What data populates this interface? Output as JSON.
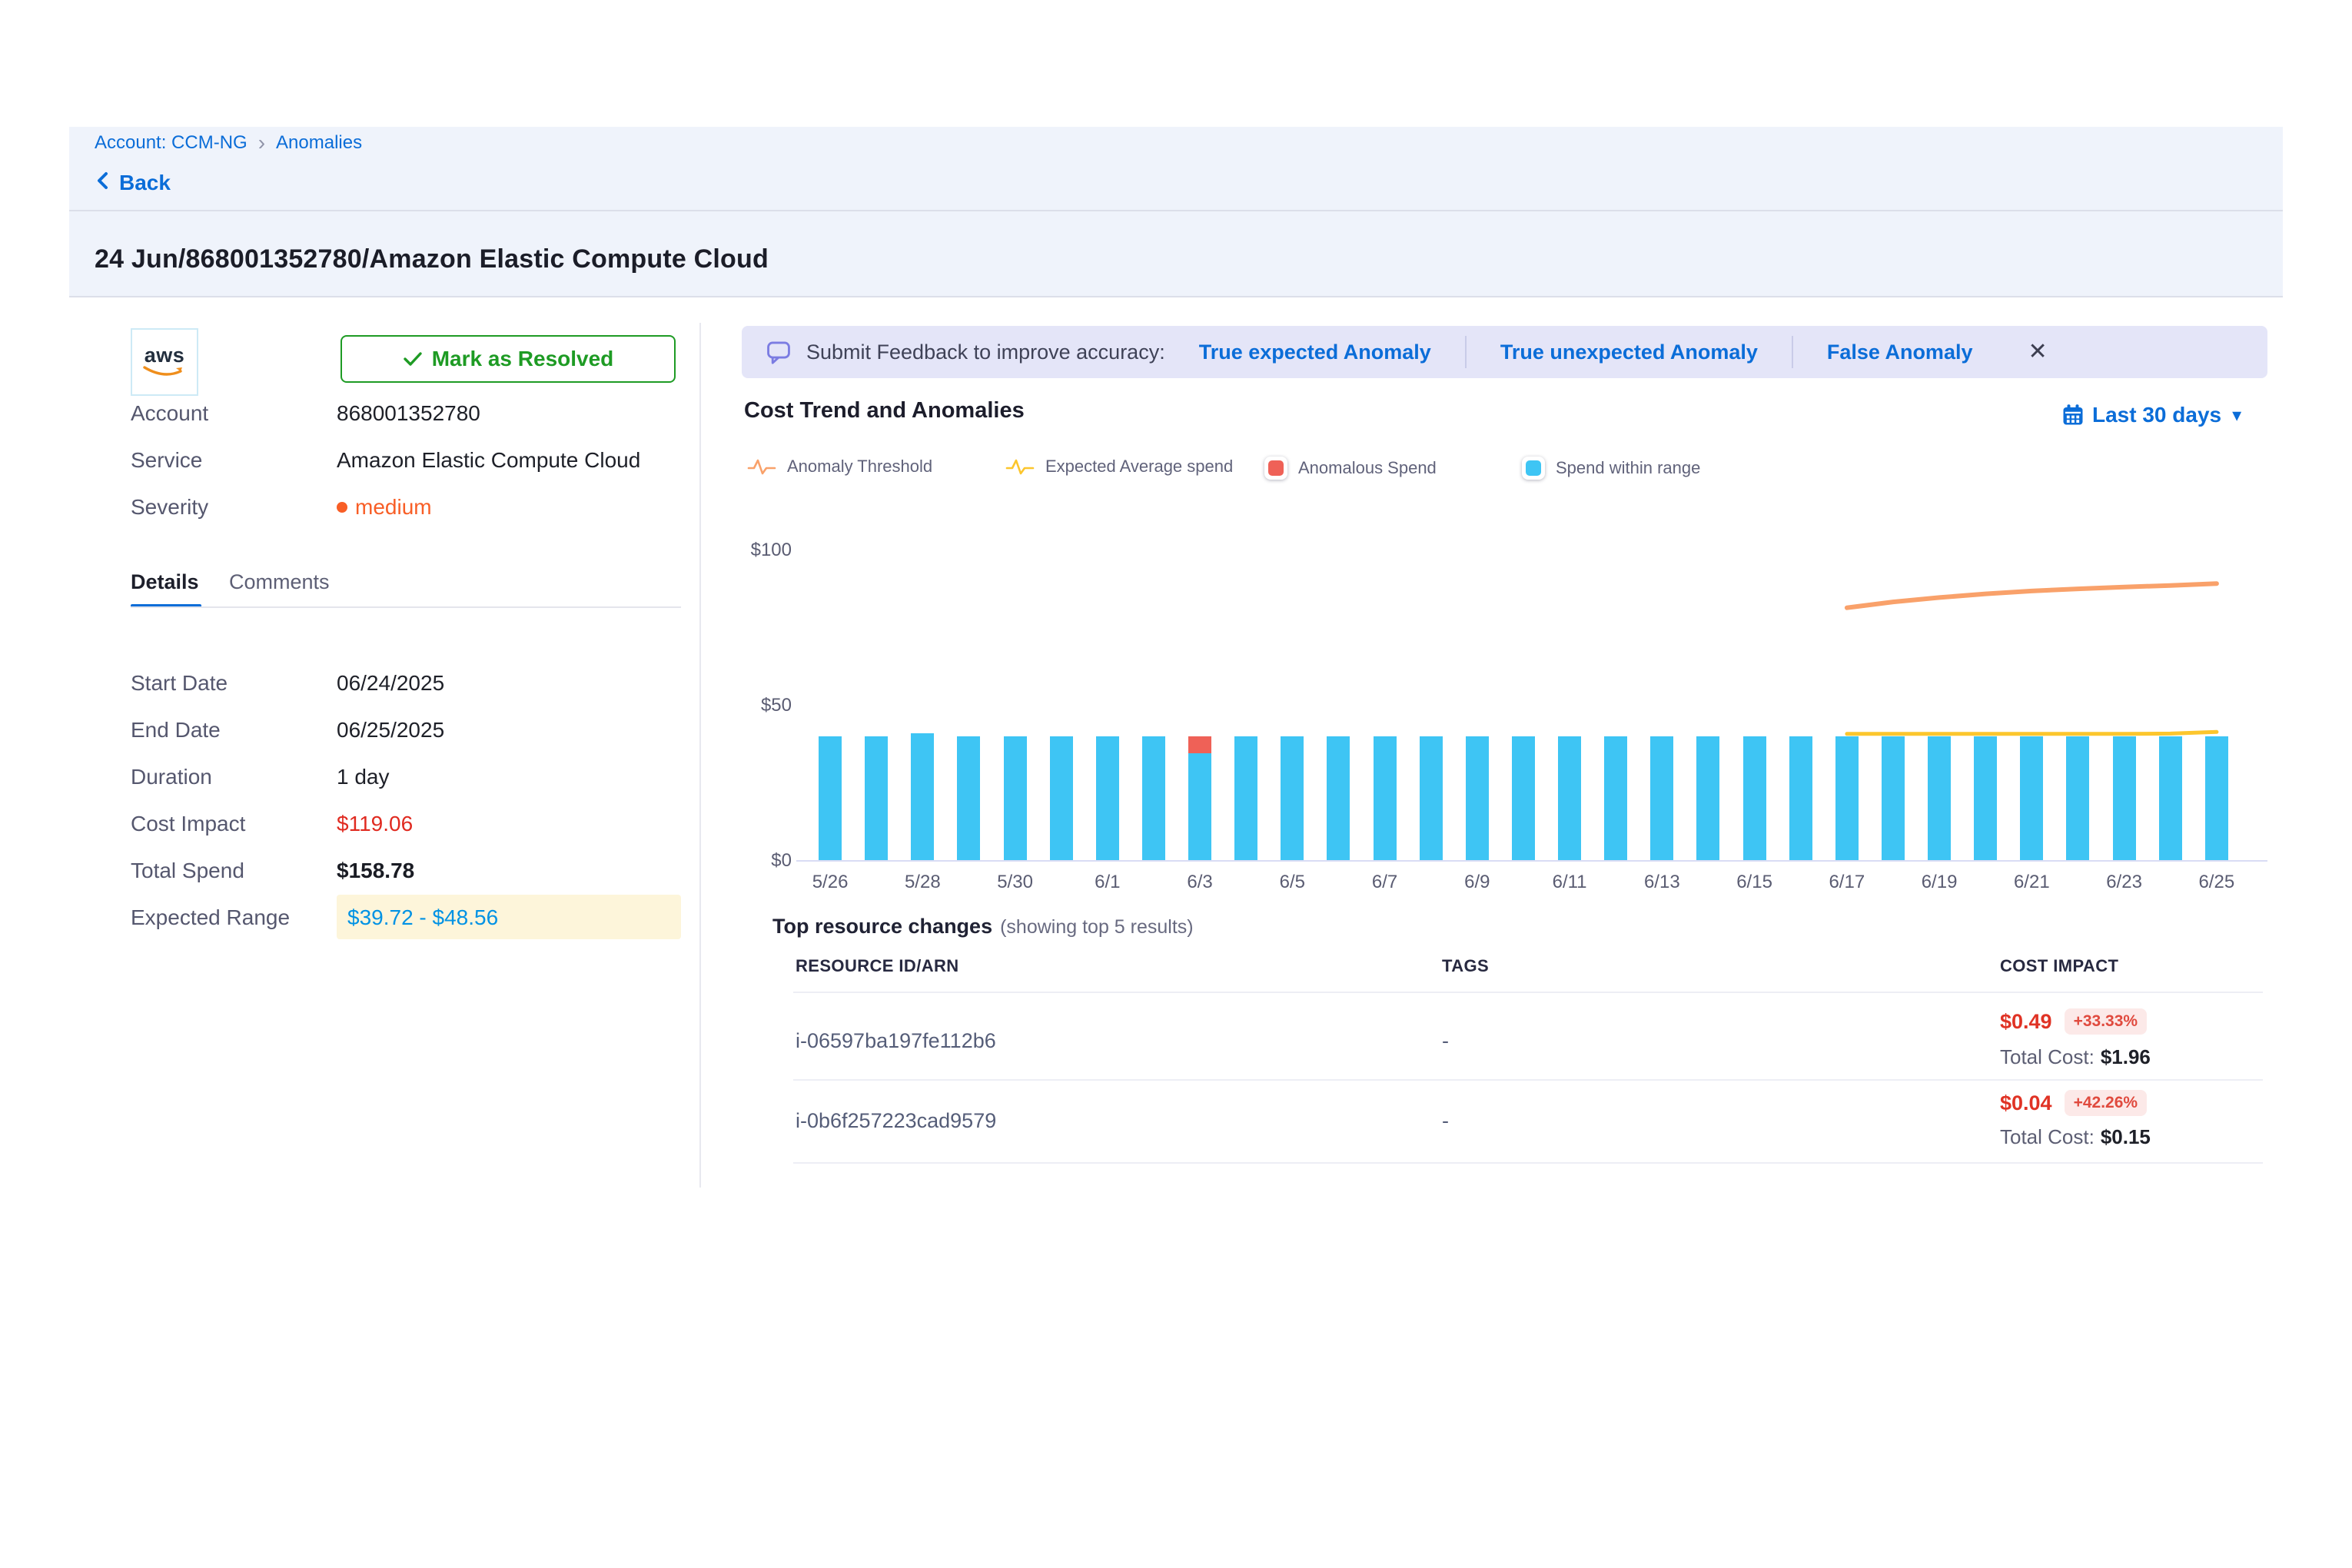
{
  "breadcrumb": {
    "account_link": "Account: CCM-NG",
    "separator": "›",
    "current": "Anomalies"
  },
  "header": {
    "back_label": "Back",
    "title": "24 Jun/868001352780/Amazon Elastic Compute Cloud"
  },
  "panel": {
    "logo_text": "aws",
    "resolve_button_label": "Mark as Resolved",
    "account_label": "Account",
    "account_value": "868001352780",
    "service_label": "Service",
    "service_value": "Amazon Elastic Compute Cloud",
    "severity_label": "Severity",
    "severity_value": "medium",
    "tabs": {
      "details": "Details",
      "comments": "Comments"
    },
    "start_date_label": "Start Date",
    "start_date": "06/24/2025",
    "end_date_label": "End Date",
    "end_date": "06/25/2025",
    "duration_label": "Duration",
    "duration": "1 day",
    "cost_impact_label": "Cost Impact",
    "cost_impact": "$119.06",
    "total_spend_label": "Total Spend",
    "total_spend": "$158.78",
    "expected_range_label": "Expected Range",
    "expected_range": "$39.72 - $48.56"
  },
  "feedback": {
    "prompt": "Submit Feedback to improve accuracy:",
    "options": [
      {
        "label": "True expected Anomaly"
      },
      {
        "label": "True unexpected Anomaly"
      },
      {
        "label": "False Anomaly"
      }
    ],
    "close_glyph": "✕"
  },
  "chart_header": {
    "title": "Cost Trend and Anomalies",
    "range_label": "Last 30 days",
    "caret": "▾"
  },
  "legend": [
    {
      "label": "Anomaly Threshold",
      "icon": "pulse",
      "color": "#f9a16a"
    },
    {
      "label": "Expected Average spend",
      "icon": "pulse",
      "color": "#fcc62d"
    },
    {
      "label": "Anomalous Spend",
      "icon": "square",
      "color": "#ef6157"
    },
    {
      "label": "Spend within range",
      "icon": "square",
      "color": "#3ec5f4"
    }
  ],
  "chart_data": {
    "type": "bar",
    "title": "Cost Trend and Anomalies",
    "xlabel": "",
    "ylabel": "",
    "ylim": [
      0,
      106
    ],
    "y_ticks": [
      "$0",
      "$50",
      "$100"
    ],
    "y_tick_values": [
      0,
      50,
      100
    ],
    "x_tick_every": 2,
    "grid": false,
    "legend_position": "top",
    "categories": [
      "5/26",
      "5/27",
      "5/28",
      "5/29",
      "5/30",
      "5/31",
      "6/1",
      "6/2",
      "6/3",
      "6/4",
      "6/5",
      "6/6",
      "6/7",
      "6/8",
      "6/9",
      "6/10",
      "6/11",
      "6/12",
      "6/13",
      "6/14",
      "6/15",
      "6/16",
      "6/17",
      "6/18",
      "6/19",
      "6/20",
      "6/21",
      "6/22",
      "6/23",
      "6/24",
      "6/25"
    ],
    "series": [
      {
        "name": "Spend within range",
        "type": "bar",
        "color": "#3ec5f4",
        "values": [
          40,
          40,
          41,
          40,
          40,
          40,
          40,
          40,
          34.7,
          40,
          40,
          40,
          40,
          40,
          40,
          40,
          40,
          40,
          40,
          40,
          40,
          40,
          40,
          40,
          40,
          40,
          40,
          40,
          40,
          40,
          40
        ]
      },
      {
        "name": "Anomalous Spend",
        "type": "bar",
        "color": "#ef6157",
        "values": [
          0,
          0,
          0,
          0,
          0,
          0,
          0,
          0,
          5.3,
          0,
          0,
          0,
          0,
          0,
          0,
          0,
          0,
          0,
          0,
          0,
          0,
          0,
          0,
          0,
          0,
          0,
          0,
          0,
          0,
          0,
          0
        ]
      },
      {
        "name": "Expected Average spend",
        "type": "line",
        "color": "#fcc62d",
        "stroke_width": 5,
        "points": [
          {
            "x": "6/17",
            "y": 40.9
          },
          {
            "x": "6/18",
            "y": 40.9
          },
          {
            "x": "6/19",
            "y": 40.9
          },
          {
            "x": "6/20",
            "y": 40.9
          },
          {
            "x": "6/21",
            "y": 40.9
          },
          {
            "x": "6/22",
            "y": 40.9
          },
          {
            "x": "6/23",
            "y": 40.9
          },
          {
            "x": "6/24",
            "y": 41.0
          },
          {
            "x": "6/25",
            "y": 41.5
          }
        ]
      },
      {
        "name": "Anomaly Threshold",
        "type": "line",
        "color": "#f9a16a",
        "stroke_width": 6,
        "points": [
          {
            "x": "6/17",
            "y": 81.5
          },
          {
            "x": "6/18",
            "y": 83.4
          },
          {
            "x": "6/19",
            "y": 84.8
          },
          {
            "x": "6/20",
            "y": 86.0
          },
          {
            "x": "6/21",
            "y": 86.9
          },
          {
            "x": "6/22",
            "y": 87.6
          },
          {
            "x": "6/23",
            "y": 88.2
          },
          {
            "x": "6/24",
            "y": 88.7
          },
          {
            "x": "6/25",
            "y": 89.3
          }
        ]
      }
    ]
  },
  "resources": {
    "heading": "Top resource changes",
    "subheading": "(showing top 5 results)",
    "columns": [
      "RESOURCE ID/ARN",
      "TAGS",
      "COST IMPACT"
    ],
    "rows": [
      {
        "resource_id": "i-06597ba197fe112b6",
        "tags": "-",
        "cost_impact": "$0.49",
        "change_pct": "+33.33%",
        "total_cost_label": "Total Cost:",
        "total_cost": "$1.96"
      },
      {
        "resource_id": "i-0b6f257223cad9579",
        "tags": "-",
        "cost_impact": "$0.04",
        "change_pct": "+42.26%",
        "total_cost_label": "Total Cost:",
        "total_cost": "$0.15"
      }
    ]
  },
  "colors": {
    "primary_blue": "#0b6dd8",
    "band_background": "#eff3fb",
    "feedback_background": "#e4e5f8",
    "bar_blue": "#3ec5f4",
    "anomaly_red": "#ef6157",
    "threshold_orange": "#f9a16a",
    "average_yellow": "#fcc62d",
    "severity_orange": "#f85e26",
    "cost_red": "#e02a20",
    "resolve_green": "#1e9b24",
    "expected_range_blue": "#0092e4",
    "expected_range_background": "#fdf5da"
  }
}
